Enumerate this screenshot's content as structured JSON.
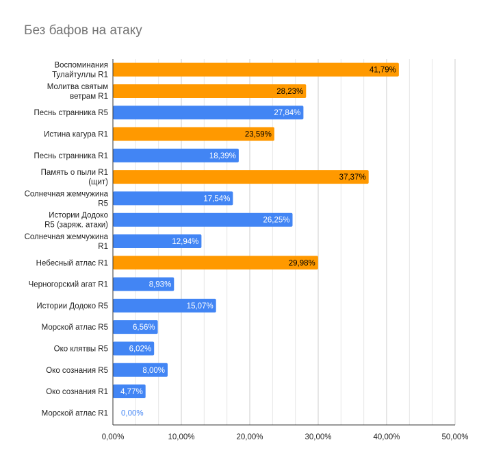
{
  "chart_data": {
    "type": "bar",
    "orientation": "horizontal",
    "title": "Без бафов на атаку",
    "xlabel": "",
    "ylabel": "",
    "xlim": [
      0,
      50
    ],
    "xticks": [
      "0,00%",
      "10,00%",
      "20,00%",
      "30,00%",
      "40,00%",
      "50,00%"
    ],
    "grid": true,
    "colors": {
      "orange": "#ff9900",
      "blue": "#4285f4"
    },
    "categories": [
      [
        "Воспоминания",
        "Тулайтуллы R1"
      ],
      [
        "Молитва святым",
        "ветрам R1"
      ],
      [
        "Песнь странника R5"
      ],
      [
        "Истина кагура R1"
      ],
      [
        "Песнь странника R1"
      ],
      [
        "Память о пыли R1",
        "(щит)"
      ],
      [
        "Солнечная жемчужина",
        "R5"
      ],
      [
        "Истории Додоко",
        "R5 (заряж. атаки)"
      ],
      [
        "Солнечная жемчужина",
        "R1"
      ],
      [
        "Небесный атлас R1"
      ],
      [
        "Черногорский агат R1"
      ],
      [
        "Истории Додоко R5"
      ],
      [
        "Морской атлас R5"
      ],
      [
        "Око клятвы R5"
      ],
      [
        "Око сознания R5"
      ],
      [
        "Око сознания R1"
      ],
      [
        "Морской атлас R1"
      ]
    ],
    "values": [
      41.79,
      28.23,
      27.84,
      23.59,
      18.39,
      37.37,
      17.54,
      26.25,
      12.94,
      29.98,
      8.93,
      15.07,
      6.56,
      6.02,
      8.0,
      4.77,
      0.0
    ],
    "labels": [
      "41,79%",
      "28,23%",
      "27,84%",
      "23,59%",
      "18,39%",
      "37,37%",
      "17,54%",
      "26,25%",
      "12,94%",
      "29,98%",
      "8,93%",
      "15,07%",
      "6,56%",
      "6,02%",
      "8,00%",
      "4,77%",
      "0,00%"
    ],
    "bar_colors": [
      "orange",
      "orange",
      "blue",
      "orange",
      "blue",
      "orange",
      "blue",
      "blue",
      "blue",
      "orange",
      "blue",
      "blue",
      "blue",
      "blue",
      "blue",
      "blue",
      "blue"
    ]
  }
}
